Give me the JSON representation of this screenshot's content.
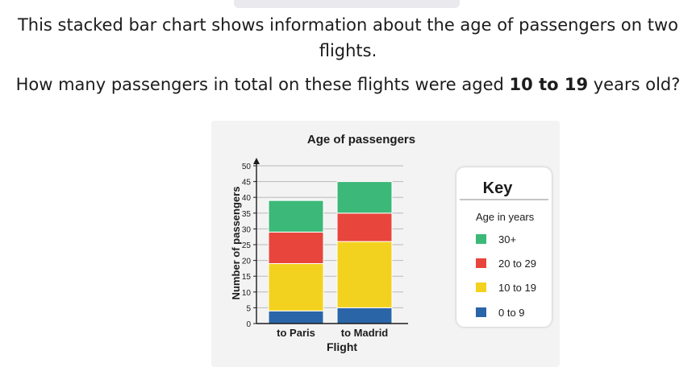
{
  "question": {
    "line1": "This stacked bar chart shows information about the age of passengers on two",
    "line2": "flights.",
    "line3_pre": "How many passengers in total on these flights were aged ",
    "line3_bold": "10 to 19",
    "line3_post": " years old?"
  },
  "key": {
    "title": "Key",
    "subtitle": "Age in years"
  },
  "colors": {
    "30+": "#3cb878",
    "20 to 29": "#e8463c",
    "10 to 19": "#f3d21f",
    "0 to 9": "#2a65a8"
  },
  "chart_data": {
    "type": "bar",
    "stacked": true,
    "title": "Age of passengers",
    "xlabel": "Flight",
    "ylabel": "Number of passengers",
    "categories": [
      "to Paris",
      "to Madrid"
    ],
    "ylim": [
      0,
      50
    ],
    "yticks": [
      0,
      5,
      10,
      15,
      20,
      25,
      30,
      35,
      40,
      45,
      50
    ],
    "grid": true,
    "legend": "right",
    "series": [
      {
        "name": "0 to 9",
        "values": [
          4,
          5
        ]
      },
      {
        "name": "10 to 19",
        "values": [
          15,
          21
        ]
      },
      {
        "name": "20 to 29",
        "values": [
          10,
          9
        ]
      },
      {
        "name": "30+",
        "values": [
          10,
          10
        ]
      }
    ]
  }
}
